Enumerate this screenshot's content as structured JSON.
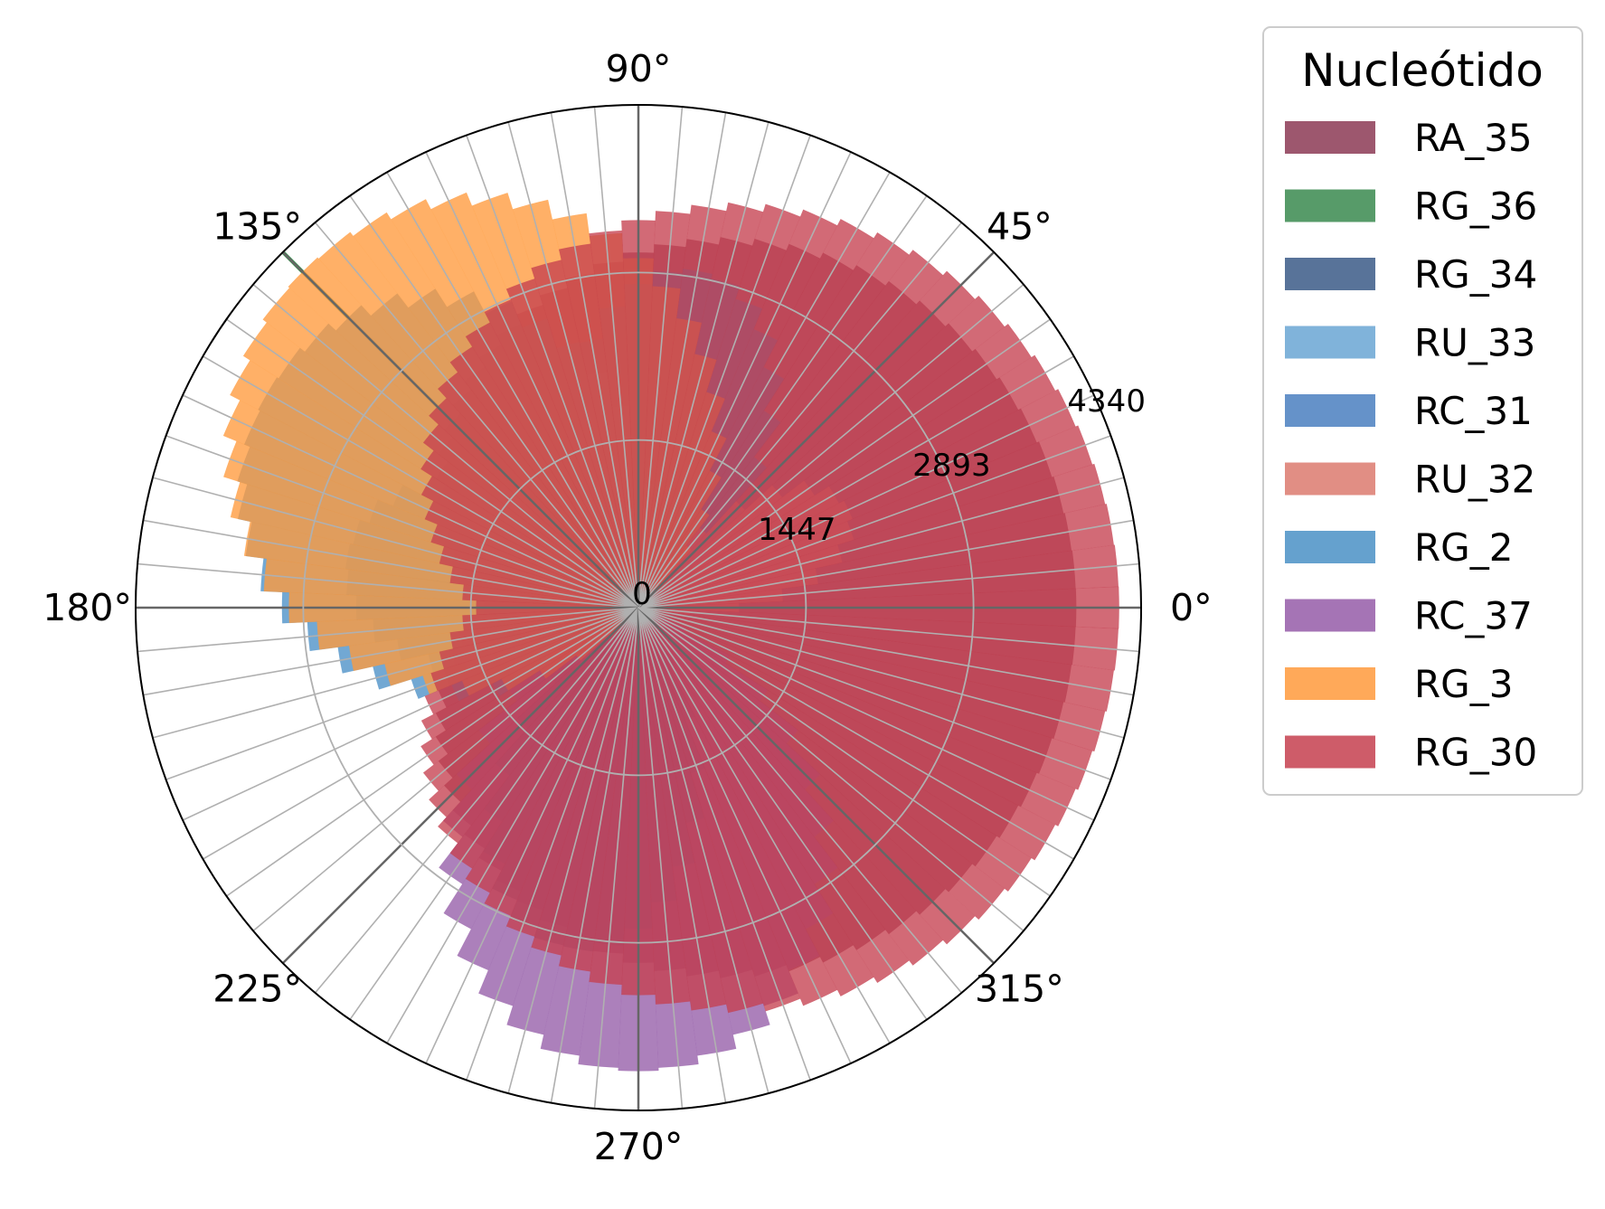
{
  "chart_data": {
    "type": "polar-bar",
    "title": "",
    "legend_title": "Nucleótido",
    "legend_placement": "outside-right",
    "angular_tick_labels": [
      "0°",
      "45°",
      "90°",
      "135°",
      "180°",
      "225°",
      "270°",
      "315°"
    ],
    "radial_tick_labels": [
      "0",
      "1447",
      "2893",
      "4340"
    ],
    "radial_ticks": [
      0,
      1447,
      2893,
      4340
    ],
    "rmax": 4340,
    "grid": true,
    "bins": 72,
    "series": [
      {
        "name": "RA_35",
        "color": "#8c3a55",
        "center_deg": 0,
        "halfwidth_deg": 180,
        "rmin": 1340,
        "rmax": 3780,
        "line": false
      },
      {
        "name": "RG_36",
        "color": "#3a8a4f",
        "center_deg": 135,
        "halfwidth_deg": 0.8,
        "rmin": 0,
        "rmax": 4340,
        "line": true
      },
      {
        "name": "RG_34",
        "color": "#3b5a87",
        "center_deg": 258,
        "halfwidth_deg": 48,
        "rmin": 0,
        "rmax": 3000,
        "line": false
      },
      {
        "name": "RU_33",
        "color": "#6aa6d4",
        "center_deg": 170,
        "halfwidth_deg": 52,
        "rmin": 0,
        "rmax": 2550,
        "line": false
      },
      {
        "name": "RC_31",
        "color": "#4a7fbf",
        "center_deg": 80,
        "halfwidth_deg": 48,
        "rmin": 0,
        "rmax": 2950,
        "line": false
      },
      {
        "name": "RU_32",
        "color": "#dc7a6f",
        "center_deg": 25,
        "halfwidth_deg": 35,
        "rmin": 0,
        "rmax": 2000,
        "line": false
      },
      {
        "name": "RG_2",
        "color": "#4a90c6",
        "center_deg": 150,
        "halfwidth_deg": 80,
        "rmin": 0,
        "rmax": 3700,
        "line": false
      },
      {
        "name": "RC_37",
        "color": "#955ca8",
        "center_deg": 270,
        "halfwidth_deg": 70,
        "rmin": 0,
        "rmax": 4000,
        "line": false
      },
      {
        "name": "RG_3",
        "color": "#ff9a3c",
        "center_deg": 135,
        "halfwidth_deg": 95,
        "rmin": 0,
        "rmax": 4100,
        "line": false
      },
      {
        "name": "RG_30",
        "color": "#c5404f",
        "center_deg": 0,
        "halfwidth_deg": 180,
        "rmin": 1400,
        "rmax": 4150,
        "line": false
      }
    ]
  }
}
